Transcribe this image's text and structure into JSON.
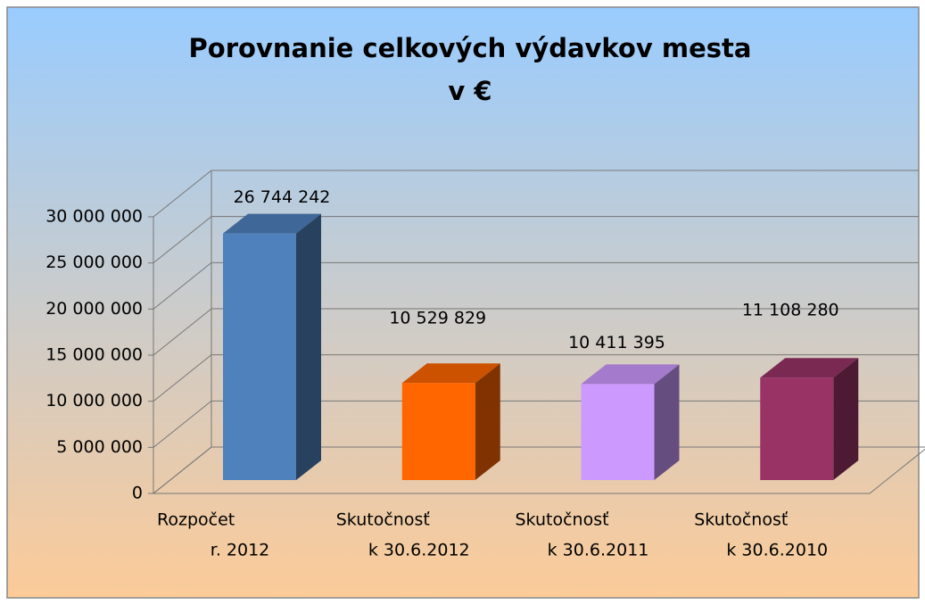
{
  "chart_data": {
    "type": "bar3d",
    "title": [
      "Porovnanie celkových výdavkov mesta",
      "v €"
    ],
    "categories": [
      [
        "Rozpočet",
        "r. 2012"
      ],
      [
        "Skutočnosť",
        "k 30.6.2012"
      ],
      [
        "Skutočnosť",
        "k 30.6.2011"
      ],
      [
        "Skutočnosť",
        "k 30.6.2010"
      ]
    ],
    "values": [
      26744242,
      10529829,
      10411395,
      11108280
    ],
    "value_labels": [
      "26 744 242",
      "10 529 829",
      "10 411 395",
      "11 108 280"
    ],
    "colors": [
      "#4f81bd",
      "#ff6600",
      "#cc99ff",
      "#993366"
    ],
    "ylim": [
      0,
      30000000
    ],
    "yticks": [
      0,
      {
        "value": 5000000,
        "label": "5 000 000"
      },
      {
        "value": 10000000,
        "label": "10 000 000"
      },
      {
        "value": 15000000,
        "label": "15 000 000"
      },
      {
        "value": 20000000,
        "label": "20 000 000"
      },
      {
        "value": 25000000,
        "label": "25 000 000"
      },
      {
        "value": 30000000,
        "label": "30 000 000"
      }
    ],
    "grid": true
  }
}
